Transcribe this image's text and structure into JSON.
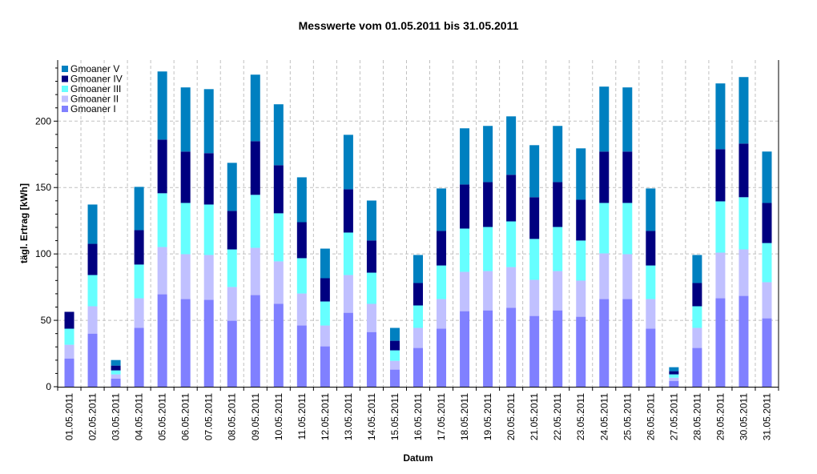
{
  "chart_data": {
    "type": "bar",
    "stacked": true,
    "title": "Messwerte vom 01.05.2011 bis 31.05.2011",
    "xlabel": "Datum",
    "ylabel": "tägl. Ertrag [kWh]",
    "ylim": [
      0,
      246
    ],
    "yticks": [
      0,
      50,
      100,
      150,
      200
    ],
    "grid": true,
    "legend_position": "top-left",
    "categories": [
      "01.05.2011",
      "02.05.2011",
      "03.05.2011",
      "04.05.2011",
      "05.05.2011",
      "06.05.2011",
      "07.05.2011",
      "08.05.2011",
      "09.05.2011",
      "10.05.2011",
      "11.05.2011",
      "12.05.2011",
      "13.05.2011",
      "14.05.2011",
      "15.05.2011",
      "16.05.2011",
      "17.05.2011",
      "18.05.2011",
      "19.05.2011",
      "20.05.2011",
      "21.05.2011",
      "22.05.2011",
      "23.05.2011",
      "24.05.2011",
      "25.05.2011",
      "26.05.2011",
      "27.05.2011",
      "28.05.2011",
      "29.05.2011",
      "30.05.2011",
      "31.05.2011"
    ],
    "series": [
      {
        "name": "Gmoaner I",
        "color": "#8080ff",
        "values": [
          21.3,
          40.0,
          6.2,
          44.3,
          69.6,
          66.0,
          65.4,
          49.7,
          69.0,
          62.4,
          46.1,
          30.4,
          55.7,
          41.2,
          12.9,
          29.2,
          43.7,
          56.9,
          57.5,
          59.4,
          53.3,
          57.5,
          52.7,
          66.0,
          66.0,
          43.7,
          4.4,
          29.2,
          66.6,
          68.4,
          51.5
        ]
      },
      {
        "name": "Gmoaner II",
        "color": "#c0c0ff",
        "values": [
          10.3,
          20.6,
          3.1,
          22.3,
          35.6,
          33.8,
          33.8,
          25.4,
          35.6,
          32.0,
          24.1,
          15.7,
          28.4,
          21.2,
          6.6,
          15.1,
          22.3,
          29.6,
          29.6,
          30.7,
          27.2,
          29.6,
          27.2,
          34.4,
          33.8,
          22.3,
          2.4,
          15.1,
          34.4,
          35.0,
          27.2
        ]
      },
      {
        "name": "Gmoaner III",
        "color": "#66ffff",
        "values": [
          12.1,
          23.5,
          3.0,
          25.4,
          40.5,
          38.6,
          38.0,
          28.3,
          39.9,
          36.2,
          26.6,
          18.1,
          32.0,
          23.5,
          7.9,
          16.9,
          25.3,
          32.6,
          33.2,
          34.4,
          30.8,
          33.2,
          30.2,
          38.0,
          38.6,
          25.3,
          2.5,
          16.3,
          38.6,
          39.3,
          29.5
        ]
      },
      {
        "name": "Gmoaner IV",
        "color": "#000080",
        "values": [
          12.7,
          23.5,
          3.6,
          25.9,
          40.4,
          38.7,
          38.7,
          29.0,
          40.4,
          36.2,
          27.1,
          17.5,
          32.6,
          24.2,
          7.2,
          16.9,
          26.0,
          33.2,
          33.8,
          35.1,
          31.4,
          33.8,
          30.7,
          38.7,
          38.7,
          26.0,
          2.4,
          17.5,
          39.3,
          40.4,
          30.2
        ]
      },
      {
        "name": "Gmoaner V",
        "color": "#0080c0",
        "values": [
          0,
          29.6,
          4.2,
          32.6,
          51.3,
          48.3,
          48.2,
          36.2,
          50.1,
          45.9,
          33.8,
          22.3,
          41.0,
          30.1,
          9.7,
          21.1,
          32.0,
          42.3,
          42.3,
          44.0,
          39.2,
          42.3,
          38.7,
          48.9,
          48.3,
          32.0,
          3.0,
          21.1,
          49.5,
          50.1,
          38.7
        ]
      }
    ]
  }
}
